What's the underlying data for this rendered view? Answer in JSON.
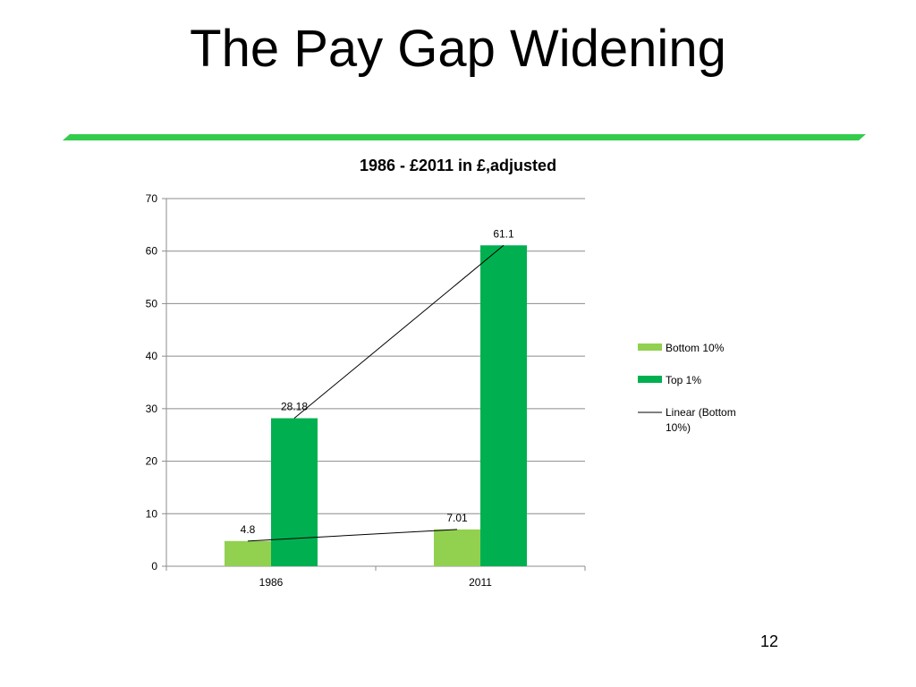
{
  "slide": {
    "title": "The Pay Gap Widening",
    "page_number": "12",
    "accent_color": "#33cc4c"
  },
  "chart_data": {
    "type": "bar",
    "title": "1986 - £2011 in £,adjusted",
    "xlabel": "",
    "ylabel": "",
    "categories": [
      "1986",
      "2011"
    ],
    "ylim": [
      0,
      70
    ],
    "yticks": [
      0,
      10,
      20,
      30,
      40,
      50,
      60,
      70
    ],
    "grid": true,
    "legend_position": "right",
    "series": [
      {
        "name": "Bottom 10%",
        "values": [
          4.8,
          7.01
        ],
        "labels": [
          "4.8",
          "7.01"
        ],
        "color": "#92d050"
      },
      {
        "name": "Top 1%",
        "values": [
          28.18,
          61.1
        ],
        "labels": [
          "28.18",
          "61.1"
        ],
        "color": "#00b050"
      }
    ],
    "trendlines": [
      {
        "name": "Linear (Bottom 10%)",
        "series": "Bottom 10%",
        "color": "#000000"
      },
      {
        "name": "",
        "series": "Top 1%",
        "color": "#000000"
      }
    ]
  }
}
